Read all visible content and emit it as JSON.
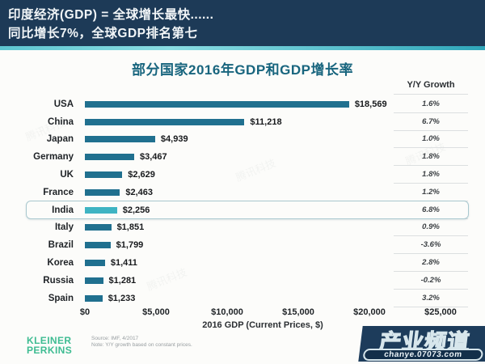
{
  "banner": {
    "line1": "印度经济(GDP) = 全球增长最快......",
    "line2": "同比增长7%，全球GDP排名第七",
    "bg_color": "#1d3a57",
    "accent_color": "#4ab9c8"
  },
  "chart_data": {
    "type": "bar",
    "title": "部分国家2016年GDP和GDP增长率",
    "growth_column_header": "Y/Y Growth",
    "xlabel": "2016 GDP (Current Prices, $)",
    "xlim": [
      0,
      25000
    ],
    "x_ticks": [
      "$0",
      "$5,000",
      "$10,000",
      "$15,000",
      "$20,000",
      "$25,000"
    ],
    "orientation": "horizontal",
    "categories": [
      "USA",
      "China",
      "Japan",
      "Germany",
      "UK",
      "France",
      "India",
      "Italy",
      "Brazil",
      "Korea",
      "Russia",
      "Spain"
    ],
    "values": [
      18569,
      11218,
      4939,
      3467,
      2629,
      2463,
      2256,
      1851,
      1799,
      1411,
      1281,
      1233
    ],
    "value_labels": [
      "$18,569",
      "$11,218",
      "$4,939",
      "$3,467",
      "$2,629",
      "$2,463",
      "$2,256",
      "$1,851",
      "$1,799",
      "$1,411",
      "$1,281",
      "$1,233"
    ],
    "growth": [
      "1.6%",
      "6.7%",
      "1.0%",
      "1.8%",
      "1.8%",
      "1.2%",
      "6.8%",
      "0.9%",
      "-3.6%",
      "2.8%",
      "-0.2%",
      "3.2%"
    ],
    "highlight_index": 6,
    "bar_color": "#20708f",
    "highlight_bar_color": "#3eb4c3",
    "grid": false,
    "legend": "none"
  },
  "footer": {
    "logo_line1": "KLEINER",
    "logo_line2": "PERKINS",
    "logo_color": "#3ebc92",
    "source": "Source: IMF, 4/2017",
    "note": "Note: Y/Y growth based on constant prices."
  },
  "watermark": {
    "title": "产业频道",
    "url": "chanye.07073.com"
  },
  "faint_watermark_text": "腾讯科技"
}
